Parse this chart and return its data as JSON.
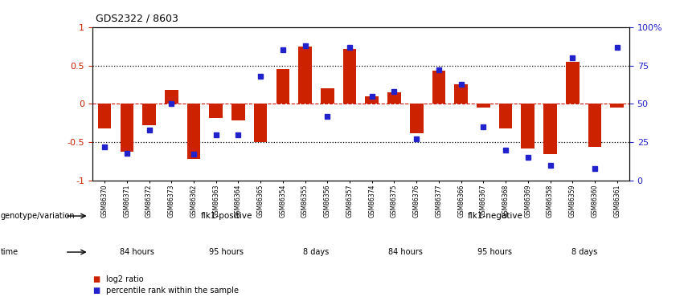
{
  "title": "GDS2322 / 8603",
  "samples": [
    "GSM86370",
    "GSM86371",
    "GSM86372",
    "GSM86373",
    "GSM86362",
    "GSM86363",
    "GSM86364",
    "GSM86365",
    "GSM86354",
    "GSM86355",
    "GSM86356",
    "GSM86357",
    "GSM86374",
    "GSM86375",
    "GSM86376",
    "GSM86377",
    "GSM86366",
    "GSM86367",
    "GSM86368",
    "GSM86369",
    "GSM86358",
    "GSM86359",
    "GSM86360",
    "GSM86361"
  ],
  "log2_ratio": [
    -0.32,
    -0.62,
    -0.28,
    0.18,
    -0.72,
    -0.18,
    -0.22,
    -0.5,
    0.45,
    0.75,
    0.2,
    0.72,
    0.1,
    0.15,
    -0.38,
    0.43,
    0.25,
    -0.05,
    -0.32,
    -0.58,
    -0.65,
    0.55,
    -0.56,
    -0.05
  ],
  "percentile": [
    22,
    18,
    33,
    50,
    17,
    30,
    30,
    68,
    85,
    88,
    42,
    87,
    55,
    58,
    27,
    72,
    63,
    35,
    20,
    15,
    10,
    80,
    8,
    87
  ],
  "bar_color": "#cc2200",
  "dot_color": "#2222cc",
  "background_color": "#ffffff",
  "zero_line_color": "#cc0000",
  "ylim": [
    -1.0,
    1.0
  ],
  "right_ylim": [
    0,
    100
  ],
  "yticks_left": [
    -1.0,
    -0.5,
    0.0,
    0.5,
    1.0
  ],
  "yticks_right": [
    0,
    25,
    50,
    75,
    100
  ],
  "hline_vals": [
    -0.5,
    0.5
  ],
  "genotype_groups": [
    {
      "label": "flk1-positive",
      "start": 0,
      "end": 12,
      "color": "#aaddaa"
    },
    {
      "label": "flk1-negative",
      "start": 12,
      "end": 24,
      "color": "#44bb44"
    }
  ],
  "time_groups": [
    {
      "label": "84 hours",
      "start": 0,
      "end": 4,
      "color": "#ffaaff"
    },
    {
      "label": "95 hours",
      "start": 4,
      "end": 8,
      "color": "#dd66dd"
    },
    {
      "label": "8 days",
      "start": 8,
      "end": 12,
      "color": "#cc33cc"
    },
    {
      "label": "84 hours",
      "start": 12,
      "end": 16,
      "color": "#ffaaff"
    },
    {
      "label": "95 hours",
      "start": 16,
      "end": 20,
      "color": "#dd66dd"
    },
    {
      "label": "8 days",
      "start": 20,
      "end": 24,
      "color": "#cc33cc"
    }
  ],
  "legend_red_label": "log2 ratio",
  "legend_blue_label": "percentile rank within the sample",
  "genotype_label": "genotype/variation",
  "time_label": "time",
  "bar_width": 0.6
}
